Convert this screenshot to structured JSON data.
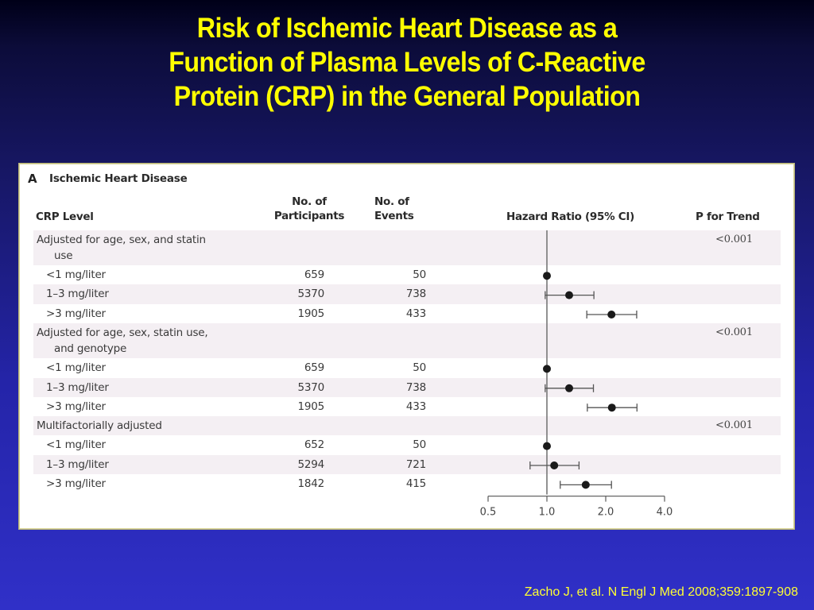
{
  "slide": {
    "title_lines": [
      "Risk of Ischemic Heart Disease as a",
      "Function of Plasma Levels of C-Reactive",
      "Protein (CRP) in the General Population"
    ],
    "citation": "Zacho J, et al. N Engl J Med 2008;359:1897-908"
  },
  "colors": {
    "title": "#ffff00",
    "background_top": "#000018",
    "background_bottom": "#3030c8",
    "row_shade": "#f4eff3",
    "marker": "#1a1a1a"
  },
  "figure": {
    "panel_label": "A",
    "panel_title": "Ischemic Heart Disease",
    "headers": {
      "crp_level": "CRP Level",
      "participants_line1": "No. of",
      "participants_line2": "Participants",
      "events_line1": "No. of",
      "events_line2": "Events",
      "hazard_ratio": "Hazard Ratio (95% CI)",
      "p_trend": "P for Trend"
    }
  },
  "chart_data": {
    "type": "forest",
    "title": "Ischemic Heart Disease",
    "xlabel": "Hazard Ratio (95% CI)",
    "x_scale": "log2",
    "xlim": [
      0.5,
      4.0
    ],
    "x_ticks": [
      "0.5",
      "1.0",
      "2.0",
      "4.0"
    ],
    "x_tick_values": [
      0.5,
      1.0,
      2.0,
      4.0
    ],
    "reference_line": 1.0,
    "groups": [
      {
        "label_line1": "Adjusted for age, sex, and statin",
        "label_line2": "use",
        "p_trend": "<0.001",
        "rows": [
          {
            "level": "<1 mg/liter",
            "participants": "659",
            "events": "50",
            "hr": 1.0,
            "ci_low": null,
            "ci_high": null
          },
          {
            "level": "1–3 mg/liter",
            "participants": "5370",
            "events": "738",
            "hr": 1.3,
            "ci_low": 0.98,
            "ci_high": 1.74
          },
          {
            "level": ">3 mg/liter",
            "participants": "1905",
            "events": "433",
            "hr": 2.14,
            "ci_low": 1.6,
            "ci_high": 2.88
          }
        ]
      },
      {
        "label_line1": "Adjusted for age, sex, statin use,",
        "label_line2": "and genotype",
        "p_trend": "<0.001",
        "rows": [
          {
            "level": "<1 mg/liter",
            "participants": "659",
            "events": "50",
            "hr": 1.0,
            "ci_low": null,
            "ci_high": null
          },
          {
            "level": "1–3 mg/liter",
            "participants": "5370",
            "events": "738",
            "hr": 1.3,
            "ci_low": 0.98,
            "ci_high": 1.73
          },
          {
            "level": ">3 mg/liter",
            "participants": "1905",
            "events": "433",
            "hr": 2.15,
            "ci_low": 1.61,
            "ci_high": 2.89
          }
        ]
      },
      {
        "label_line1": "Multifactorially adjusted",
        "label_line2": null,
        "p_trend": "<0.001",
        "rows": [
          {
            "level": "<1 mg/liter",
            "participants": "652",
            "events": "50",
            "hr": 1.0,
            "ci_low": null,
            "ci_high": null
          },
          {
            "level": "1–3 mg/liter",
            "participants": "5294",
            "events": "721",
            "hr": 1.09,
            "ci_low": 0.82,
            "ci_high": 1.46
          },
          {
            "level": ">3 mg/liter",
            "participants": "1842",
            "events": "415",
            "hr": 1.58,
            "ci_low": 1.17,
            "ci_high": 2.14
          }
        ]
      }
    ]
  }
}
